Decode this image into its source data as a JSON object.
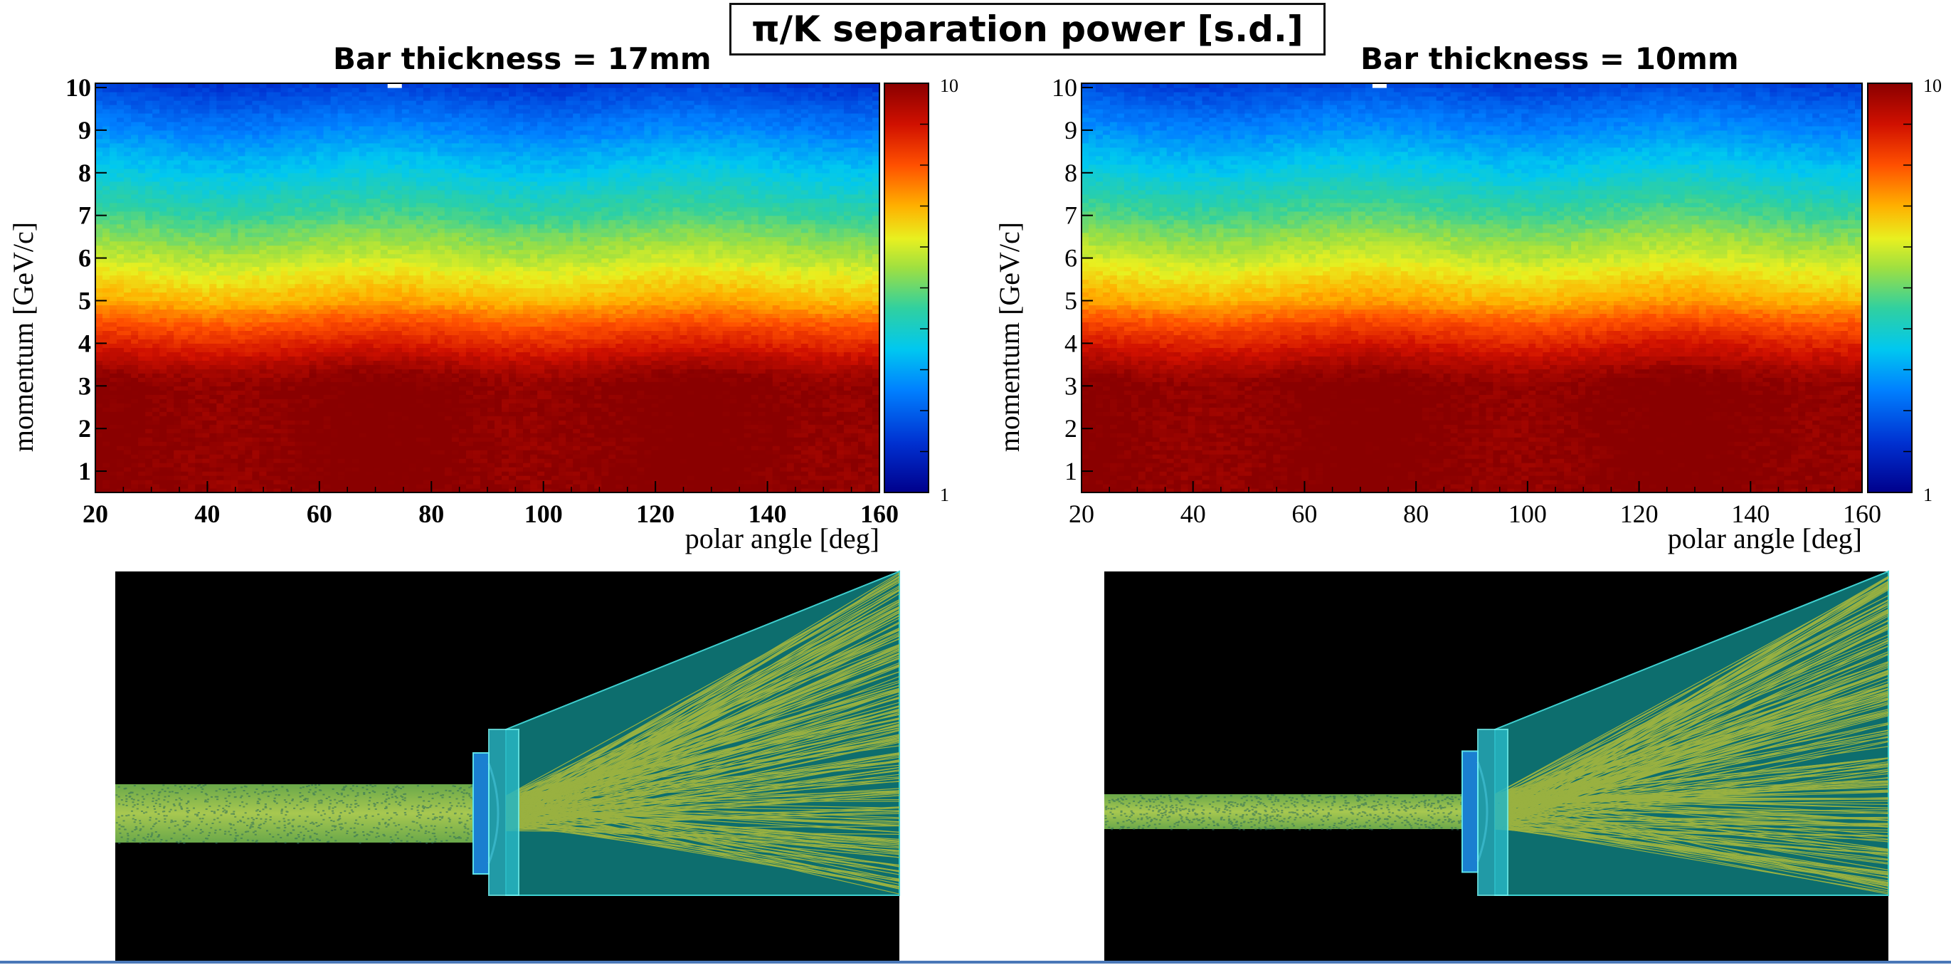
{
  "title": "π/K separation power [s.d.]",
  "colors": {
    "background": "#ffffff",
    "detector_background": "#000000",
    "detector_body": "#0d6e6e",
    "photon_tracks": "#c8c832",
    "bar_fill": "#7fb84a",
    "lens": "#27b6c3"
  },
  "chart_data": [
    {
      "type": "heatmap",
      "title": "Bar thickness = 17mm",
      "xlabel": "polar angle [deg]",
      "ylabel": "momentum [GeV/c]",
      "xlim": [
        20,
        160
      ],
      "ylim": [
        0.5,
        10.1
      ],
      "xticks": [
        20,
        40,
        60,
        80,
        100,
        120,
        140,
        160
      ],
      "yticks": [
        1,
        2,
        3,
        4,
        5,
        6,
        7,
        8,
        9,
        10
      ],
      "colorbar": {
        "min": 1,
        "max": 10,
        "min_label": "1",
        "max_label": "10",
        "scale": "log"
      },
      "profile": {
        "momentum": [
          0.5,
          1,
          2,
          3,
          3.3,
          4,
          5,
          6,
          7,
          8,
          9,
          10,
          10.1
        ],
        "separation": [
          10,
          10,
          10,
          10,
          9.5,
          7.4,
          5.0,
          3.8,
          2.9,
          2.3,
          1.8,
          1.4,
          1.35
        ]
      }
    },
    {
      "type": "heatmap",
      "title": "Bar thickness = 10mm",
      "xlabel": "polar angle [deg]",
      "ylabel": "momentum [GeV/c]",
      "xlim": [
        20,
        160
      ],
      "ylim": [
        0.5,
        10.1
      ],
      "xticks": [
        20,
        40,
        60,
        80,
        100,
        120,
        140,
        160
      ],
      "yticks": [
        1,
        2,
        3,
        4,
        5,
        6,
        7,
        8,
        9,
        10
      ],
      "colorbar": {
        "min": 1,
        "max": 10,
        "min_label": "1",
        "max_label": "10",
        "scale": "log"
      },
      "profile": {
        "momentum": [
          0.5,
          1,
          2,
          3,
          3.3,
          4,
          5,
          6,
          7,
          8,
          9,
          10,
          10.1
        ],
        "separation": [
          10,
          10,
          10,
          10,
          9.5,
          7.6,
          5.1,
          3.9,
          3.0,
          2.35,
          1.85,
          1.45,
          1.4
        ]
      }
    }
  ],
  "detectors": [
    {
      "bar_thickness_mm": 17
    },
    {
      "bar_thickness_mm": 10
    }
  ]
}
